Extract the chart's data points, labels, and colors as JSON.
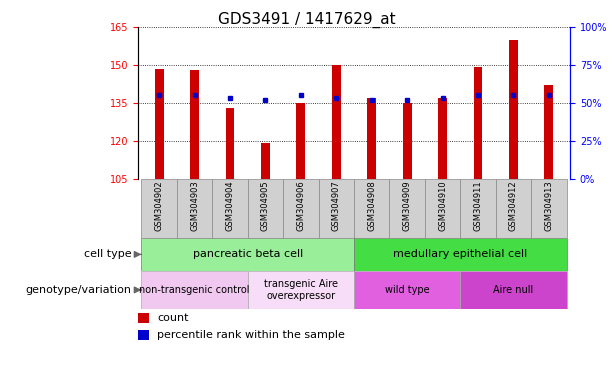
{
  "title": "GDS3491 / 1417629_at",
  "samples": [
    "GSM304902",
    "GSM304903",
    "GSM304904",
    "GSM304905",
    "GSM304906",
    "GSM304907",
    "GSM304908",
    "GSM304909",
    "GSM304910",
    "GSM304911",
    "GSM304912",
    "GSM304913"
  ],
  "counts": [
    148.5,
    148.0,
    133.0,
    119.0,
    135.0,
    150.0,
    137.0,
    135.0,
    137.0,
    149.0,
    160.0,
    142.0
  ],
  "percentiles": [
    55,
    55,
    53,
    52,
    55,
    53,
    52,
    52,
    53,
    55,
    55,
    55
  ],
  "ylim_left": [
    105,
    165
  ],
  "ylim_right": [
    0,
    100
  ],
  "yticks_left": [
    105,
    120,
    135,
    150,
    165
  ],
  "yticks_right": [
    0,
    25,
    50,
    75,
    100
  ],
  "bar_color": "#cc0000",
  "dot_color": "#0000cc",
  "bar_bottom": 105,
  "cell_type_groups": [
    {
      "label": "pancreatic beta cell",
      "start": 0,
      "end": 5,
      "color": "#99ee99"
    },
    {
      "label": "medullary epithelial cell",
      "start": 6,
      "end": 11,
      "color": "#44dd44"
    }
  ],
  "genotype_groups": [
    {
      "label": "non-transgenic control",
      "start": 0,
      "end": 2,
      "color": "#f0c8f0"
    },
    {
      "label": "transgenic Aire\noverexpressor",
      "start": 3,
      "end": 5,
      "color": "#f8ddf8"
    },
    {
      "label": "wild type",
      "start": 6,
      "end": 8,
      "color": "#e060e0"
    },
    {
      "label": "Aire null",
      "start": 9,
      "end": 11,
      "color": "#cc44cc"
    }
  ],
  "cell_type_label": "cell type",
  "genotype_label": "genotype/variation",
  "legend_count": "count",
  "legend_percentile": "percentile rank within the sample",
  "bar_width": 0.25,
  "title_fontsize": 11,
  "label_fontsize": 8,
  "tick_fontsize": 7
}
